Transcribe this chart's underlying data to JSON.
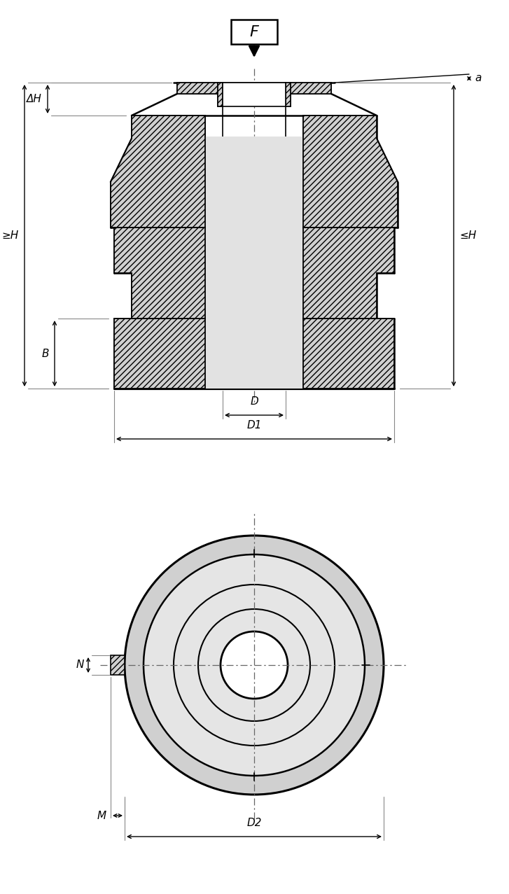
{
  "bg_color": "#ffffff",
  "line_color": "#000000",
  "fill_color": "#d0d0d0",
  "center_line_color": "#666666",
  "fig_width": 7.27,
  "fig_height": 12.77,
  "labels": {
    "F": "F",
    "alpha": "a",
    "delta_H": "ΔH",
    "ge_H": "≥H",
    "le_H": "≤H",
    "B": "B",
    "D": "D",
    "D1": "D1",
    "D2": "D2",
    "N": "N",
    "M": "M"
  }
}
